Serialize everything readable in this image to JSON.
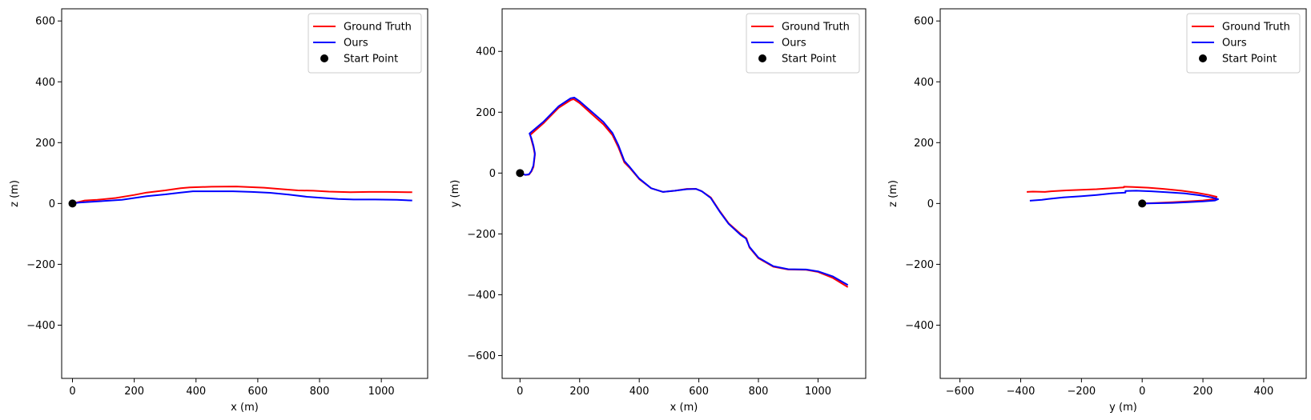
{
  "chart_data": [
    {
      "type": "line",
      "title": "",
      "xlabel": "x (m)",
      "ylabel": "z (m)",
      "xlim": [
        -35,
        1150
      ],
      "ylim": [
        -575,
        640
      ],
      "xticks": [
        0,
        200,
        400,
        600,
        800,
        1000
      ],
      "yticks": [
        -400,
        -200,
        0,
        200,
        400,
        600
      ],
      "xtick_labels": [
        "0",
        "200",
        "400",
        "600",
        "800",
        "1000"
      ],
      "ytick_labels": [
        "−400",
        "−200",
        "0",
        "200",
        "400",
        "600"
      ],
      "grid": false,
      "legend": {
        "placement": "top-right",
        "entries": [
          "Ground Truth",
          "Ours",
          "Start Point"
        ]
      },
      "series": [
        {
          "name": "Ground Truth",
          "color": "#ff0000",
          "x": [
            0,
            20,
            40,
            80,
            140,
            200,
            240,
            300,
            350,
            380,
            450,
            530,
            620,
            680,
            730,
            780,
            830,
            900,
            960,
            1020,
            1100
          ],
          "y": [
            0,
            5,
            10,
            12,
            18,
            28,
            36,
            43,
            50,
            53,
            55,
            56,
            52,
            47,
            43,
            42,
            39,
            37,
            38,
            38,
            37
          ]
        },
        {
          "name": "Ours",
          "color": "#0000ff",
          "x": [
            0,
            20,
            50,
            100,
            160,
            200,
            240,
            300,
            350,
            390,
            450,
            520,
            580,
            640,
            700,
            760,
            800,
            860,
            910,
            980,
            1050,
            1100
          ],
          "y": [
            0,
            3,
            5,
            8,
            12,
            18,
            24,
            30,
            36,
            40,
            40,
            40,
            38,
            35,
            29,
            22,
            19,
            15,
            13,
            13,
            12,
            10
          ]
        }
      ],
      "start_point": {
        "name": "Start Point",
        "x": 0,
        "y": 0,
        "color": "#000000"
      }
    },
    {
      "type": "line",
      "title": "",
      "xlabel": "x (m)",
      "ylabel": "y (m)",
      "xlim": [
        -60,
        1160
      ],
      "ylim": [
        -675,
        540
      ],
      "xticks": [
        0,
        200,
        400,
        600,
        800,
        1000
      ],
      "yticks": [
        -600,
        -400,
        -200,
        0,
        200,
        400
      ],
      "xtick_labels": [
        "0",
        "200",
        "400",
        "600",
        "800",
        "1000"
      ],
      "ytick_labels": [
        "−600",
        "−400",
        "−200",
        "0",
        "200",
        "400"
      ],
      "grid": false,
      "legend": {
        "placement": "top-right",
        "entries": [
          "Ground Truth",
          "Ours",
          "Start Point"
        ]
      },
      "series": [
        {
          "name": "Ground Truth",
          "color": "#ff0000",
          "x": [
            0,
            8,
            18,
            30,
            38,
            45,
            50,
            45,
            38,
            34,
            80,
            130,
            170,
            180,
            200,
            240,
            280,
            310,
            330,
            350,
            370,
            400,
            440,
            480,
            520,
            560,
            590,
            610,
            640,
            670,
            700,
            740,
            760,
            770,
            800,
            850,
            900,
            960,
            1000,
            1050,
            1100
          ],
          "y": [
            0,
            -3,
            -6,
            -5,
            5,
            20,
            60,
            85,
            110,
            125,
            165,
            215,
            240,
            243,
            230,
            195,
            160,
            125,
            85,
            35,
            15,
            -20,
            -50,
            -62,
            -58,
            -52,
            -52,
            -60,
            -80,
            -125,
            -165,
            -200,
            -215,
            -245,
            -280,
            -308,
            -317,
            -318,
            -325,
            -345,
            -375
          ]
        },
        {
          "name": "Ours",
          "color": "#0000ff",
          "x": [
            0,
            8,
            18,
            30,
            38,
            45,
            50,
            45,
            38,
            32,
            80,
            130,
            170,
            182,
            200,
            240,
            280,
            310,
            330,
            350,
            368,
            400,
            440,
            480,
            520,
            560,
            590,
            610,
            640,
            670,
            700,
            740,
            758,
            770,
            800,
            850,
            900,
            960,
            1000,
            1050,
            1100
          ],
          "y": [
            0,
            -3,
            -6,
            -4,
            7,
            25,
            65,
            90,
            115,
            130,
            170,
            220,
            246,
            248,
            236,
            202,
            168,
            132,
            92,
            40,
            20,
            -18,
            -50,
            -62,
            -58,
            -53,
            -52,
            -60,
            -82,
            -127,
            -167,
            -203,
            -215,
            -243,
            -278,
            -306,
            -316,
            -317,
            -323,
            -340,
            -368
          ]
        }
      ],
      "start_point": {
        "name": "Start Point",
        "x": 0,
        "y": 0,
        "color": "#000000"
      }
    },
    {
      "type": "line",
      "title": "",
      "xlabel": "y (m)",
      "ylabel": "z (m)",
      "xlim": [
        -665,
        540
      ],
      "ylim": [
        -575,
        640
      ],
      "xticks": [
        -600,
        -400,
        -200,
        0,
        200,
        400
      ],
      "yticks": [
        -400,
        -200,
        0,
        200,
        400,
        600
      ],
      "xtick_labels": [
        "−600",
        "−400",
        "−200",
        "0",
        "200",
        "400"
      ],
      "ytick_labels": [
        "−400",
        "−200",
        "0",
        "200",
        "400",
        "600"
      ],
      "grid": false,
      "legend": {
        "placement": "top-right",
        "entries": [
          "Ground Truth",
          "Ours",
          "Start Point"
        ]
      },
      "series": [
        {
          "name": "Ground Truth",
          "color": "#ff0000",
          "x": [
            0,
            50,
            100,
            150,
            200,
            240,
            245,
            220,
            180,
            130,
            70,
            20,
            -30,
            -60,
            -60,
            -100,
            -150,
            -200,
            -250,
            -300,
            -320,
            -360,
            -380
          ],
          "y": [
            0,
            2,
            4,
            7,
            10,
            15,
            22,
            28,
            35,
            42,
            48,
            52,
            54,
            55,
            53,
            50,
            47,
            45,
            43,
            40,
            38,
            39,
            38
          ]
        },
        {
          "name": "Ours",
          "color": "#0000ff",
          "x": [
            0,
            50,
            100,
            150,
            200,
            240,
            250,
            230,
            190,
            140,
            80,
            30,
            -20,
            -55,
            -55,
            -100,
            -150,
            -200,
            -260,
            -310,
            -330,
            -370
          ],
          "y": [
            0,
            1,
            2,
            4,
            7,
            10,
            14,
            20,
            27,
            33,
            37,
            40,
            42,
            41,
            36,
            33,
            28,
            24,
            20,
            15,
            12,
            9
          ]
        }
      ],
      "start_point": {
        "name": "Start Point",
        "x": 0,
        "y": 0,
        "color": "#000000"
      }
    }
  ]
}
